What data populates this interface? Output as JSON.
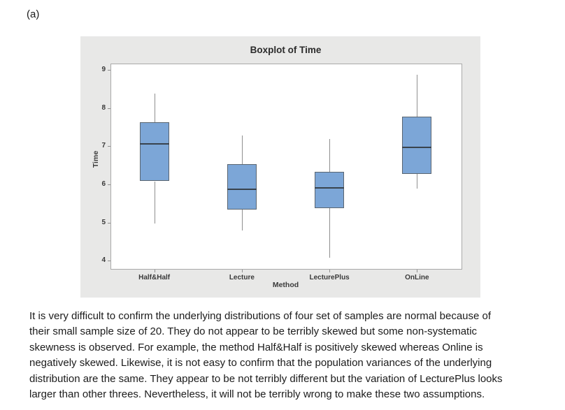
{
  "page": {
    "part_label": "(a)"
  },
  "chart_data": {
    "type": "boxplot",
    "title": "Boxplot of Time",
    "xlabel": "Method",
    "ylabel": "Time",
    "categories": [
      "Half&Half",
      "Lecture",
      "LecturePlus",
      "OnLine"
    ],
    "yticks": [
      4,
      5,
      6,
      7,
      8,
      9
    ],
    "ylim": [
      3.8,
      9.17
    ],
    "grid": false,
    "legend": "none",
    "series": [
      {
        "name": "Half&Half",
        "whisker_low": 5.0,
        "q1": 6.1,
        "median": 7.1,
        "q3": 7.65,
        "whisker_high": 8.4
      },
      {
        "name": "Lecture",
        "whisker_low": 4.8,
        "q1": 5.35,
        "median": 5.9,
        "q3": 6.55,
        "whisker_high": 7.3
      },
      {
        "name": "LecturePlus",
        "whisker_low": 4.1,
        "q1": 5.4,
        "median": 5.95,
        "q3": 6.35,
        "whisker_high": 7.2
      },
      {
        "name": "OnLine",
        "whisker_low": 5.9,
        "q1": 6.3,
        "median": 7.0,
        "q3": 7.8,
        "whisker_high": 8.9
      }
    ],
    "colors": {
      "box_fill": "#7ca6d7",
      "box_border": "#5a6570",
      "median": "#39434d",
      "whisker": "#8f8f8f",
      "panel_bg": "#e8e8e7",
      "plot_bg": "#ffffff",
      "plot_border": "#a9a9a9",
      "text": "#3a3a3a"
    }
  },
  "analysis": {
    "lines": [
      "It is very difficult to confirm the underlying distributions of four set of samples are normal because of",
      "their small sample size of 20. They do not appear to be terribly skewed but some non-systematic",
      "skewness is observed. For example, the method Half&Half is positively skewed whereas Online is",
      "negatively skewed. Likewise, it is not easy to confirm that the population variances of the underlying",
      "distribution are the same. They appear to be not terribly different but the variation of LecturePlus looks",
      "larger than other threes. Nevertheless, it will not be terribly wrong to make these two assumptions."
    ]
  }
}
